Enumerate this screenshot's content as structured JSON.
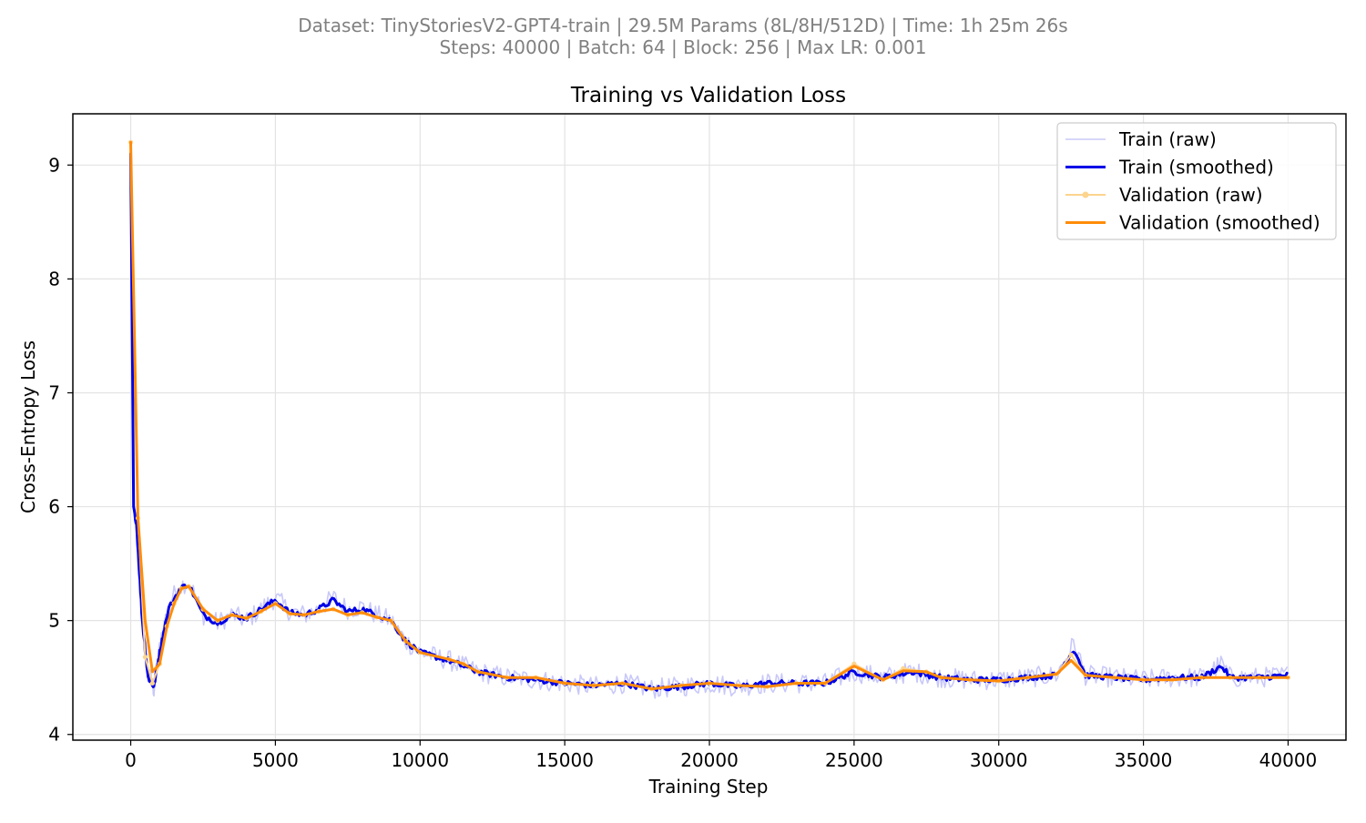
{
  "header": {
    "line1": "Dataset: TinyStoriesV2-GPT4-train | 29.5M Params (8L/8H/512D) | Time: 1h 25m 26s",
    "line2": "Steps: 40000 | Batch: 64 | Block: 256 | Max LR: 0.001"
  },
  "colors": {
    "train_raw": "#c8c8fa",
    "train_smoothed": "#0000e6",
    "val_raw": "#fcd48e",
    "val_smoothed": "#ff8c0a",
    "grid": "#e3e3e3",
    "header_text": "#808080"
  },
  "chart_data": {
    "type": "line",
    "title": "Training vs Validation Loss",
    "xlabel": "Training Step",
    "ylabel": "Cross-Entropy Loss",
    "xlim": [
      -2000,
      42000
    ],
    "ylim": [
      3.95,
      9.45
    ],
    "xticks": [
      0,
      5000,
      10000,
      15000,
      20000,
      25000,
      30000,
      35000,
      40000
    ],
    "yticks": [
      4,
      5,
      6,
      7,
      8,
      9
    ],
    "grid": true,
    "legend_position": "top-right",
    "series": [
      {
        "name": "Train (raw)",
        "x": [
          0,
          100,
          200,
          400,
          600,
          800,
          1000,
          1300,
          1700,
          2000,
          2500,
          3000,
          3500,
          4000,
          4500,
          5000,
          5500,
          6000,
          6500,
          7000,
          7500,
          8000,
          8500,
          9000,
          9500,
          10000,
          11000,
          12000,
          13000,
          14000,
          15000,
          16000,
          17000,
          18000,
          19000,
          20000,
          21000,
          22000,
          23000,
          24000,
          25000,
          26000,
          27000,
          28000,
          29000,
          30000,
          31000,
          32000,
          32600,
          33000,
          34000,
          35000,
          36000,
          37000,
          37700,
          38000,
          39000,
          40000
        ],
        "y": [
          9.15,
          6.0,
          5.85,
          5.0,
          4.55,
          4.4,
          4.75,
          5.15,
          5.3,
          5.35,
          5.05,
          4.98,
          5.05,
          5.0,
          5.1,
          5.2,
          5.08,
          5.05,
          5.1,
          5.2,
          5.1,
          5.12,
          5.05,
          5.0,
          4.82,
          4.72,
          4.65,
          4.55,
          4.5,
          4.48,
          4.45,
          4.42,
          4.45,
          4.4,
          4.42,
          4.45,
          4.42,
          4.45,
          4.45,
          4.45,
          4.55,
          4.5,
          4.55,
          4.5,
          4.48,
          4.48,
          4.5,
          4.52,
          4.8,
          4.52,
          4.5,
          4.48,
          4.5,
          4.5,
          4.62,
          4.5,
          4.5,
          4.52
        ]
      },
      {
        "name": "Train (smoothed)",
        "x": [
          0,
          100,
          200,
          400,
          600,
          800,
          1000,
          1300,
          1700,
          2000,
          2500,
          3000,
          3500,
          4000,
          4500,
          5000,
          5500,
          6000,
          6500,
          7000,
          7500,
          8000,
          8500,
          9000,
          9500,
          10000,
          11000,
          12000,
          13000,
          14000,
          15000,
          16000,
          17000,
          18000,
          19000,
          20000,
          21000,
          22000,
          23000,
          24000,
          25000,
          26000,
          27000,
          28000,
          29000,
          30000,
          31000,
          32000,
          32600,
          33000,
          34000,
          35000,
          36000,
          37000,
          37700,
          38000,
          39000,
          40000
        ],
        "y": [
          9.1,
          6.0,
          5.85,
          5.0,
          4.5,
          4.42,
          4.72,
          5.1,
          5.28,
          5.32,
          5.05,
          4.98,
          5.05,
          5.02,
          5.1,
          5.18,
          5.07,
          5.05,
          5.1,
          5.18,
          5.08,
          5.1,
          5.05,
          5.0,
          4.82,
          4.72,
          4.65,
          4.55,
          4.5,
          4.48,
          4.45,
          4.43,
          4.45,
          4.4,
          4.42,
          4.45,
          4.42,
          4.45,
          4.45,
          4.45,
          4.55,
          4.5,
          4.55,
          4.5,
          4.48,
          4.48,
          4.5,
          4.52,
          4.75,
          4.52,
          4.5,
          4.48,
          4.5,
          4.5,
          4.6,
          4.5,
          4.5,
          4.52
        ]
      },
      {
        "name": "Validation (raw)",
        "x": [
          0,
          250,
          500,
          750,
          1000,
          1250,
          1500,
          1750,
          2000,
          2500,
          3000,
          3500,
          4000,
          4500,
          5000,
          5500,
          6000,
          6500,
          7000,
          7500,
          8000,
          8500,
          9000,
          9500,
          10000,
          11000,
          11500,
          12000,
          13000,
          14000,
          15000,
          16000,
          17000,
          18000,
          19000,
          20000,
          21000,
          22000,
          23000,
          24000,
          25000,
          26000,
          26700,
          27500,
          28000,
          29000,
          30000,
          31000,
          32000,
          32500,
          33000,
          34000,
          35000,
          36000,
          37000,
          38000,
          39000,
          40000
        ],
        "y": [
          9.2,
          5.9,
          4.68,
          4.45,
          4.62,
          4.95,
          5.15,
          5.28,
          5.3,
          5.1,
          5.0,
          5.05,
          5.02,
          5.08,
          5.15,
          5.06,
          5.05,
          5.08,
          5.1,
          5.05,
          5.07,
          5.03,
          5.0,
          4.82,
          4.72,
          4.66,
          4.62,
          4.55,
          4.5,
          4.5,
          4.45,
          4.43,
          4.45,
          4.4,
          4.43,
          4.45,
          4.43,
          4.42,
          4.45,
          4.45,
          4.62,
          4.48,
          4.58,
          4.55,
          4.5,
          4.48,
          4.47,
          4.5,
          4.53,
          4.7,
          4.52,
          4.5,
          4.48,
          4.48,
          4.5,
          4.5,
          4.5,
          4.5
        ]
      },
      {
        "name": "Validation (smoothed)",
        "x": [
          0,
          250,
          500,
          750,
          1000,
          1250,
          1500,
          1750,
          2000,
          2500,
          3000,
          3500,
          4000,
          4500,
          5000,
          5500,
          6000,
          6500,
          7000,
          7500,
          8000,
          8500,
          9000,
          9500,
          10000,
          11000,
          11500,
          12000,
          13000,
          14000,
          15000,
          16000,
          17000,
          18000,
          19000,
          20000,
          21000,
          22000,
          23000,
          24000,
          25000,
          26000,
          26700,
          27500,
          28000,
          29000,
          30000,
          31000,
          32000,
          32500,
          33000,
          34000,
          35000,
          36000,
          37000,
          38000,
          39000,
          40000
        ],
        "y": [
          9.2,
          5.9,
          5.0,
          4.55,
          4.62,
          4.95,
          5.15,
          5.28,
          5.3,
          5.1,
          5.0,
          5.05,
          5.02,
          5.08,
          5.15,
          5.06,
          5.05,
          5.08,
          5.1,
          5.05,
          5.07,
          5.03,
          5.0,
          4.82,
          4.72,
          4.66,
          4.62,
          4.55,
          4.5,
          4.5,
          4.45,
          4.43,
          4.45,
          4.4,
          4.43,
          4.45,
          4.43,
          4.42,
          4.45,
          4.45,
          4.6,
          4.48,
          4.56,
          4.55,
          4.5,
          4.48,
          4.47,
          4.5,
          4.53,
          4.65,
          4.52,
          4.5,
          4.48,
          4.48,
          4.5,
          4.5,
          4.5,
          4.5
        ]
      }
    ]
  }
}
